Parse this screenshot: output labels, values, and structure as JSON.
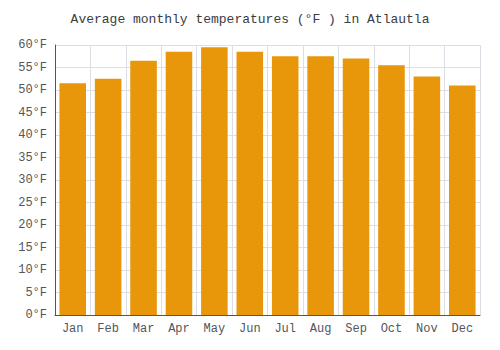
{
  "chart_data": {
    "type": "bar",
    "title": "Average monthly temperatures (°F ) in Atlautla",
    "categories": [
      "Jan",
      "Feb",
      "Mar",
      "Apr",
      "May",
      "Jun",
      "Jul",
      "Aug",
      "Sep",
      "Oct",
      "Nov",
      "Dec"
    ],
    "values": [
      51.5,
      52.5,
      56.5,
      58.5,
      59.5,
      58.5,
      57.5,
      57.5,
      57.0,
      55.5,
      53.0,
      51.0
    ],
    "color": "#E8960A",
    "ylim": [
      0,
      60
    ],
    "yticks": [
      {
        "value": 0,
        "label": "0°F"
      },
      {
        "value": 5,
        "label": "5°F"
      },
      {
        "value": 10,
        "label": "10°F"
      },
      {
        "value": 15,
        "label": "15°F"
      },
      {
        "value": 20,
        "label": "20°F"
      },
      {
        "value": 25,
        "label": "25°F"
      },
      {
        "value": 30,
        "label": "30°F"
      },
      {
        "value": 35,
        "label": "35°F"
      },
      {
        "value": 40,
        "label": "40°F"
      },
      {
        "value": 45,
        "label": "45°F"
      },
      {
        "value": 50,
        "label": "50°F"
      },
      {
        "value": 55,
        "label": "55°F"
      },
      {
        "value": 60,
        "label": "60°F"
      }
    ],
    "grid": true
  }
}
